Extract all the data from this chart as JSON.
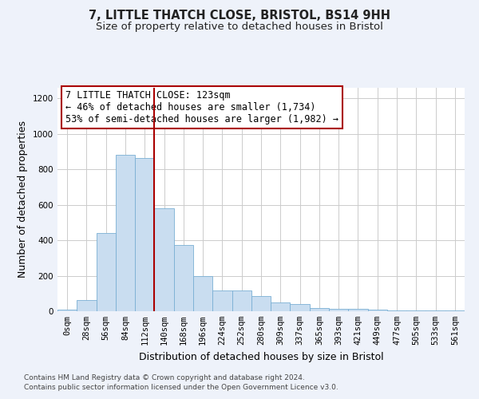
{
  "title_main": "7, LITTLE THATCH CLOSE, BRISTOL, BS14 9HH",
  "title_sub": "Size of property relative to detached houses in Bristol",
  "xlabel": "Distribution of detached houses by size in Bristol",
  "ylabel": "Number of detached properties",
  "bar_labels": [
    "0sqm",
    "28sqm",
    "56sqm",
    "84sqm",
    "112sqm",
    "140sqm",
    "168sqm",
    "196sqm",
    "224sqm",
    "252sqm",
    "280sqm",
    "309sqm",
    "337sqm",
    "365sqm",
    "393sqm",
    "421sqm",
    "449sqm",
    "477sqm",
    "505sqm",
    "533sqm",
    "561sqm"
  ],
  "bar_values": [
    10,
    65,
    440,
    880,
    865,
    580,
    375,
    200,
    115,
    115,
    85,
    50,
    40,
    20,
    15,
    15,
    10,
    5,
    5,
    5,
    5
  ],
  "bar_color": "#c9ddf0",
  "bar_edgecolor": "#7aafd4",
  "bar_width": 1.0,
  "vline_x": 4.5,
  "vline_color": "#aa0000",
  "annotation_text": "7 LITTLE THATCH CLOSE: 123sqm\n← 46% of detached houses are smaller (1,734)\n53% of semi-detached houses are larger (1,982) →",
  "annotation_box_color": "#ffffff",
  "annotation_box_edgecolor": "#aa0000",
  "ylim": [
    0,
    1260
  ],
  "yticks": [
    0,
    200,
    400,
    600,
    800,
    1000,
    1200
  ],
  "footer_line1": "Contains HM Land Registry data © Crown copyright and database right 2024.",
  "footer_line2": "Contains public sector information licensed under the Open Government Licence v3.0.",
  "background_color": "#eef2fa",
  "plot_bg_color": "#ffffff",
  "grid_color": "#cccccc",
  "title_fontsize": 10.5,
  "subtitle_fontsize": 9.5,
  "axis_label_fontsize": 9,
  "tick_fontsize": 7.5,
  "footer_fontsize": 6.5,
  "annot_fontsize": 8.5
}
